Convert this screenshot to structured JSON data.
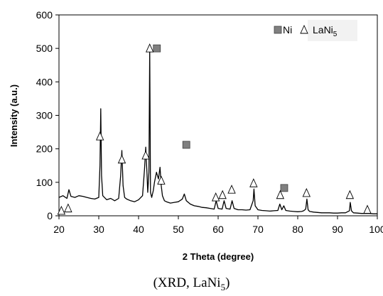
{
  "caption": {
    "prefix": "(XRD, LaNi",
    "sub": "5",
    "suffix": ")"
  },
  "chart_data": {
    "type": "line",
    "xlabel": "2 Theta (degree)",
    "ylabel": "Intensity (a.u.)",
    "xlim": [
      20,
      100
    ],
    "ylim": [
      0,
      600
    ],
    "xticks": [
      20,
      30,
      40,
      50,
      60,
      70,
      80,
      90,
      100
    ],
    "yticks": [
      0,
      100,
      200,
      300,
      400,
      500,
      600
    ],
    "grid": false,
    "legend_position": "top-right",
    "legend": [
      {
        "marker": "square",
        "label": "Ni",
        "color": "#808080"
      },
      {
        "marker": "triangle",
        "label": "LaNi",
        "label_sub": "5",
        "color": "#ffffff"
      }
    ],
    "series": [
      {
        "color": "#000000",
        "x": [
          20,
          21,
          22,
          22.5,
          23,
          24,
          25,
          26,
          27,
          28,
          29,
          30,
          30.3,
          30.5,
          30.7,
          31,
          32,
          33,
          34,
          35,
          35.5,
          35.8,
          36.1,
          36.5,
          37,
          38,
          39,
          40,
          41,
          41.5,
          41.8,
          42.1,
          42.3,
          42.6,
          42.8,
          43.0,
          43.3,
          43.7,
          44,
          44.5,
          45,
          45.4,
          45.7,
          46,
          46.5,
          47,
          48,
          49,
          50,
          51,
          51.5,
          52,
          53,
          54,
          55,
          56,
          57,
          58,
          59,
          59.5,
          60,
          61,
          61.5,
          62,
          63,
          63.5,
          64,
          65,
          66,
          67,
          68,
          68.8,
          69,
          69.3,
          70,
          71,
          72,
          73,
          74,
          75,
          75.5,
          76,
          76.5,
          77,
          78,
          79,
          80,
          81,
          81.5,
          82,
          82.3,
          82.6,
          83,
          84,
          85,
          86,
          87,
          88,
          89,
          90,
          91,
          92,
          93,
          93.2,
          93.5,
          94,
          95,
          96,
          97,
          98,
          99,
          100
        ],
        "y": [
          55,
          60,
          52,
          78,
          58,
          55,
          60,
          58,
          55,
          52,
          50,
          55,
          150,
          320,
          120,
          60,
          48,
          52,
          45,
          52,
          120,
          195,
          90,
          55,
          50,
          45,
          42,
          48,
          60,
          140,
          205,
          130,
          70,
          130,
          500,
          70,
          55,
          75,
          100,
          130,
          110,
          145,
          90,
          60,
          45,
          42,
          38,
          40,
          42,
          50,
          65,
          45,
          35,
          30,
          28,
          25,
          24,
          22,
          20,
          45,
          22,
          20,
          45,
          22,
          20,
          45,
          22,
          18,
          18,
          17,
          18,
          45,
          80,
          30,
          18,
          16,
          15,
          14,
          15,
          16,
          35,
          18,
          30,
          16,
          14,
          13,
          12,
          13,
          15,
          20,
          50,
          18,
          13,
          11,
          10,
          9,
          9,
          9,
          8,
          8,
          9,
          9,
          15,
          40,
          15,
          9,
          8,
          7,
          7,
          7,
          6,
          6
        ]
      }
    ],
    "markers": {
      "Ni": [
        [
          44.6,
          500
        ],
        [
          52.0,
          212
        ],
        [
          76.6,
          83
        ]
      ],
      "LaNi5": [
        [
          20.6,
          15
        ],
        [
          22.3,
          22
        ],
        [
          30.3,
          237
        ],
        [
          35.8,
          168
        ],
        [
          41.8,
          180
        ],
        [
          42.8,
          500
        ],
        [
          45.7,
          105
        ],
        [
          59.4,
          55
        ],
        [
          61.1,
          62
        ],
        [
          63.4,
          78
        ],
        [
          68.9,
          97
        ],
        [
          75.6,
          62
        ],
        [
          82.2,
          68
        ],
        [
          93.1,
          62
        ],
        [
          97.5,
          18
        ]
      ]
    }
  }
}
